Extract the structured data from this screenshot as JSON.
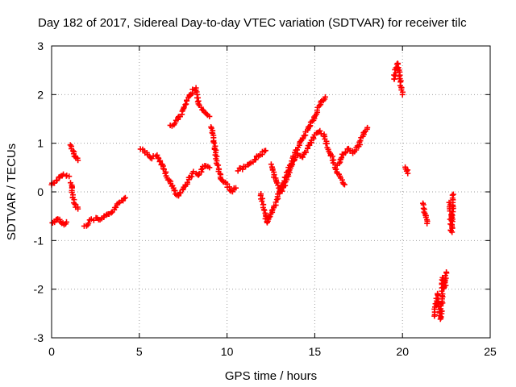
{
  "chart_data": {
    "type": "scatter",
    "title": "Day 182 of 2017, Sidereal Day-to-day VTEC variation (SDTVAR) for receiver tilc",
    "xlabel": "GPS time / hours",
    "ylabel": "SDTVAR / TECUs",
    "xlim": [
      0,
      25
    ],
    "ylim": [
      -3,
      3
    ],
    "xticks": [
      0,
      5,
      10,
      15,
      20,
      25
    ],
    "yticks": [
      -3,
      -2,
      -1,
      0,
      1,
      2,
      3
    ],
    "grid": true,
    "marker": "+",
    "series": [
      {
        "name": "SDTVAR",
        "color": "#ff0000",
        "segments": [
          {
            "x": [
              0.0,
              0.2,
              0.4,
              0.6,
              0.8,
              1.0
            ],
            "y": [
              0.15,
              0.2,
              0.28,
              0.33,
              0.35,
              0.32
            ]
          },
          {
            "x": [
              0.0,
              0.2,
              0.4,
              0.55,
              0.7,
              0.85
            ],
            "y": [
              -0.65,
              -0.6,
              -0.55,
              -0.6,
              -0.68,
              -0.62
            ]
          },
          {
            "x": [
              1.1,
              1.2,
              1.3,
              1.4,
              1.5
            ],
            "y": [
              0.95,
              0.85,
              0.75,
              0.7,
              0.65
            ]
          },
          {
            "x": [
              1.1,
              1.2,
              1.3,
              1.4,
              1.5
            ],
            "y": [
              0.2,
              -0.05,
              -0.2,
              -0.3,
              -0.35
            ]
          },
          {
            "x": [
              1.9,
              2.2,
              2.5,
              2.8,
              3.1,
              3.4,
              3.7,
              4.0,
              4.2
            ],
            "y": [
              -0.72,
              -0.6,
              -0.55,
              -0.58,
              -0.5,
              -0.42,
              -0.3,
              -0.18,
              -0.12
            ]
          },
          {
            "x": [
              5.1,
              5.4,
              5.7,
              6.0,
              6.3,
              6.6,
              6.9,
              7.2,
              7.5,
              7.8,
              8.1,
              8.4,
              8.7,
              9.0
            ],
            "y": [
              0.9,
              0.8,
              0.7,
              0.75,
              0.55,
              0.3,
              0.1,
              -0.1,
              0.05,
              0.25,
              0.4,
              0.35,
              0.55,
              0.5
            ]
          },
          {
            "x": [
              6.8,
              7.1,
              7.4,
              7.7,
              8.0,
              8.2,
              8.4,
              8.7,
              9.0
            ],
            "y": [
              1.35,
              1.45,
              1.6,
              1.85,
              2.05,
              2.15,
              1.8,
              1.65,
              1.55
            ]
          },
          {
            "x": [
              9.1,
              9.3,
              9.5,
              9.7,
              10.0,
              10.3,
              10.5
            ],
            "y": [
              1.35,
              0.95,
              0.45,
              0.25,
              0.15,
              0.0,
              0.08
            ]
          },
          {
            "x": [
              10.6,
              11.0,
              11.4,
              11.8,
              12.2
            ],
            "y": [
              0.45,
              0.5,
              0.6,
              0.75,
              0.85
            ]
          },
          {
            "x": [
              11.9,
              12.1,
              12.3,
              12.6,
              12.9,
              13.2,
              13.5,
              13.8,
              14.1,
              14.4,
              14.7,
              15.0,
              15.3,
              15.6
            ],
            "y": [
              -0.05,
              -0.35,
              -0.65,
              -0.4,
              -0.1,
              0.2,
              0.45,
              0.75,
              0.95,
              1.15,
              1.35,
              1.55,
              1.8,
              1.95
            ]
          },
          {
            "x": [
              12.5,
              12.8,
              13.1,
              13.4,
              13.7,
              14.0,
              14.3,
              14.6,
              14.9,
              15.2,
              15.5,
              15.8,
              16.1,
              16.4,
              16.7
            ],
            "y": [
              0.55,
              0.2,
              0.0,
              0.25,
              0.55,
              0.8,
              0.7,
              0.9,
              1.1,
              1.25,
              1.2,
              0.85,
              0.6,
              0.3,
              0.15
            ]
          },
          {
            "x": [
              16.3,
              16.6,
              16.9,
              17.2,
              17.5,
              17.8,
              18.0
            ],
            "y": [
              0.55,
              0.75,
              0.9,
              0.8,
              0.95,
              1.2,
              1.32
            ]
          },
          {
            "x": [
              19.5,
              19.6,
              19.7,
              19.8,
              19.9,
              20.0
            ],
            "y": [
              2.3,
              2.5,
              2.65,
              2.45,
              2.2,
              2.0
            ]
          },
          {
            "x": [
              20.2,
              20.3
            ],
            "y": [
              0.5,
              0.38
            ]
          },
          {
            "x": [
              21.2,
              21.3,
              21.4
            ],
            "y": [
              -0.25,
              -0.5,
              -0.65
            ]
          },
          {
            "x": [
              21.8,
              21.9,
              22.0,
              22.1,
              22.2,
              22.3,
              22.4,
              22.5
            ],
            "y": [
              -2.55,
              -2.35,
              -2.1,
              -2.5,
              -2.6,
              -1.75,
              -2.0,
              -1.65
            ]
          },
          {
            "x": [
              22.7,
              22.8,
              22.9
            ],
            "y": [
              -0.2,
              -0.85,
              -0.05
            ]
          }
        ]
      }
    ]
  }
}
